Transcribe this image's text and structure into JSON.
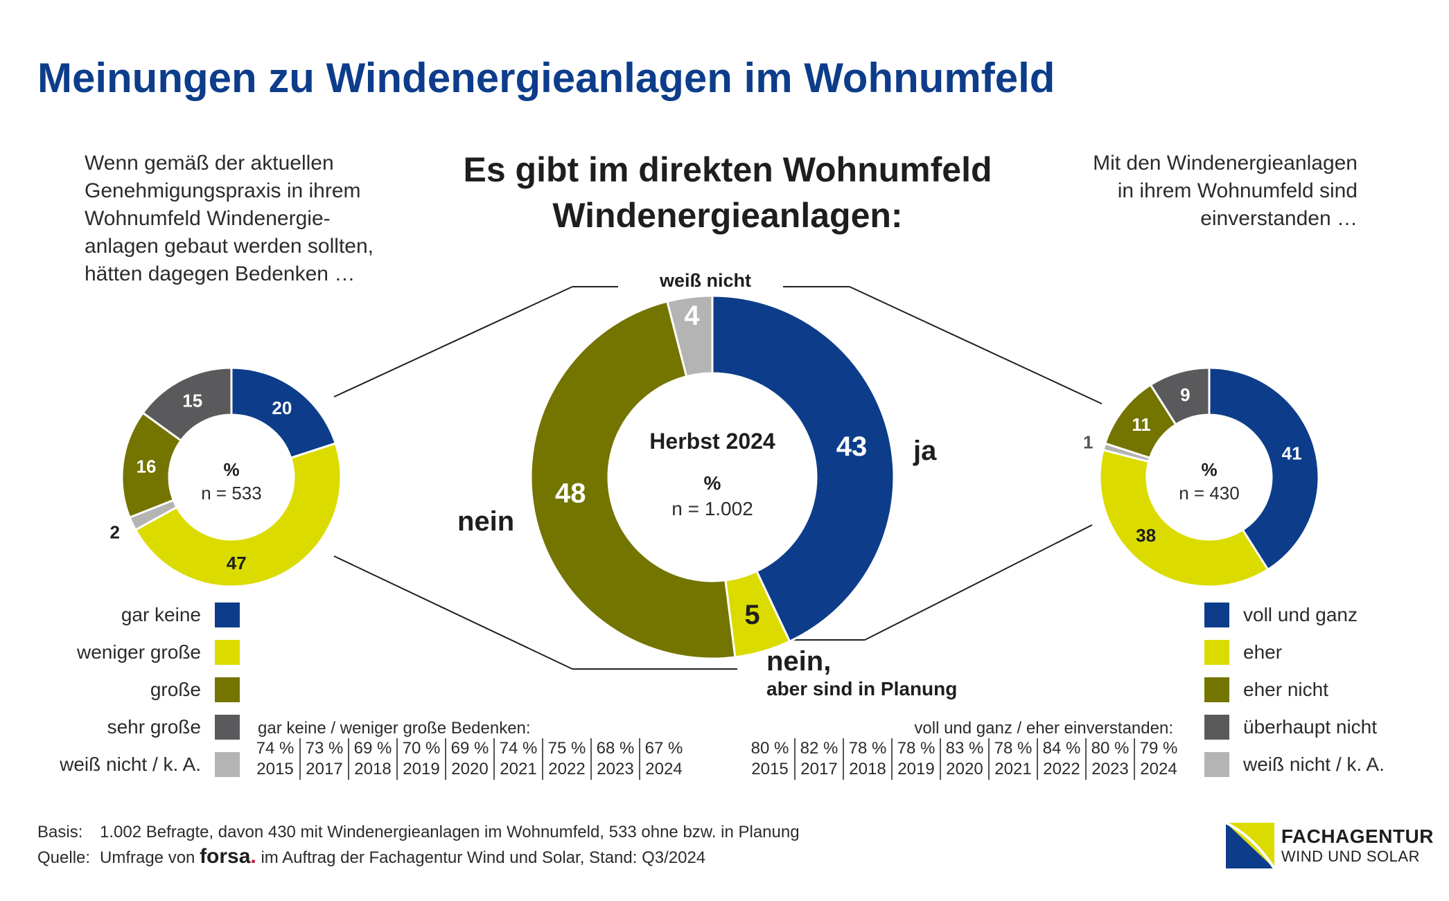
{
  "title": "Meinungen zu Windenergieanlagen im Wohnumfeld",
  "intro_left": [
    "Wenn gemäß der aktuellen",
    "Genehmigungspraxis in ihrem",
    "Wohnumfeld Windenergie-",
    "anlagen gebaut werden sollten,",
    "hätten dagegen Bedenken …"
  ],
  "intro_right": [
    "Mit den Windenergieanlagen",
    "in ihrem Wohnumfeld sind",
    "einverstanden …"
  ],
  "center_heading": [
    "Es gibt im direkten Wohnumfeld",
    "Windenergieanlagen:"
  ],
  "colors": {
    "blue": "#0d3d8a",
    "yellow": "#dcdb00",
    "olive": "#747400",
    "dark_gray": "#5a5a5c",
    "light_gray": "#b4b4b4",
    "title_blue": "#0d3d8a"
  },
  "chart_data": [
    {
      "type": "pie",
      "variant": "donut",
      "center_labels": [
        "%",
        "n = 533"
      ],
      "slices": [
        {
          "label": "gar keine",
          "value": 20,
          "color": "#0d3d8a"
        },
        {
          "label": "weniger große",
          "value": 47,
          "color": "#dcdb00"
        },
        {
          "label": "weiß nicht / k. A.",
          "value": 2,
          "color": "#b4b4b4"
        },
        {
          "label": "große",
          "value": 16,
          "color": "#747400"
        },
        {
          "label": "sehr große",
          "value": 15,
          "color": "#5a5a5c"
        }
      ],
      "legend": [
        "gar keine",
        "weniger große",
        "große",
        "sehr große",
        "weiß nicht / k. A."
      ],
      "trend": {
        "heading": "gar keine / weniger große Bedenken:",
        "values": [
          "74 %",
          "73 %",
          "69 %",
          "70 %",
          "69 %",
          "74 %",
          "75 %",
          "68 %",
          "67 %"
        ],
        "years": [
          "2015",
          "2017",
          "2018",
          "2019",
          "2020",
          "2021",
          "2022",
          "2023",
          "2024"
        ]
      }
    },
    {
      "type": "pie",
      "variant": "donut",
      "center_labels": [
        "Herbst 2024",
        "%",
        "n = 1.002"
      ],
      "slices": [
        {
          "label": "ja",
          "value": 43,
          "color": "#0d3d8a"
        },
        {
          "label": "nein, aber sind in Planung",
          "value": 5,
          "color": "#dcdb00"
        },
        {
          "label": "nein",
          "value": 48,
          "color": "#747400"
        },
        {
          "label": "weiß nicht",
          "value": 4,
          "color": "#b4b4b4"
        }
      ],
      "outer_labels": {
        "ja": "ja",
        "nein": "nein",
        "planung_1": "nein,",
        "planung_2": "aber sind in Planung",
        "weiss_nicht": "weiß nicht"
      }
    },
    {
      "type": "pie",
      "variant": "donut",
      "center_labels": [
        "%",
        "n = 430"
      ],
      "slices": [
        {
          "label": "voll und ganz",
          "value": 41,
          "color": "#0d3d8a"
        },
        {
          "label": "eher",
          "value": 38,
          "color": "#dcdb00"
        },
        {
          "label": "weiß nicht / k. A.",
          "value": 1,
          "color": "#b4b4b4"
        },
        {
          "label": "eher nicht",
          "value": 11,
          "color": "#747400"
        },
        {
          "label": "überhaupt nicht",
          "value": 9,
          "color": "#5a5a5c"
        }
      ],
      "legend": [
        "voll und ganz",
        "eher",
        "eher nicht",
        "überhaupt nicht",
        "weiß nicht / k. A."
      ],
      "trend": {
        "heading": "voll und ganz / eher einverstanden:",
        "values": [
          "80 %",
          "82 %",
          "78 %",
          "78 %",
          "83 %",
          "78 %",
          "84 %",
          "80 %",
          "79 %"
        ],
        "years": [
          "2015",
          "2017",
          "2018",
          "2019",
          "2020",
          "2021",
          "2022",
          "2023",
          "2024"
        ]
      }
    }
  ],
  "footer": {
    "basis_key": "Basis:",
    "basis_text": "1.002 Befragte, davon 430 mit Windenergieanlagen im Wohnumfeld, 533 ohne bzw. in Planung",
    "quelle_key": "Quelle:",
    "quelle_pre": "Umfrage von",
    "forsa": "forsa",
    "forsa_dot": ".",
    "quelle_post": "im Auftrag der Fachagentur Wind und Solar, Stand: Q3/2024"
  },
  "logo": {
    "line1": "FACHAGENTUR",
    "line2": "WIND UND SOLAR"
  }
}
